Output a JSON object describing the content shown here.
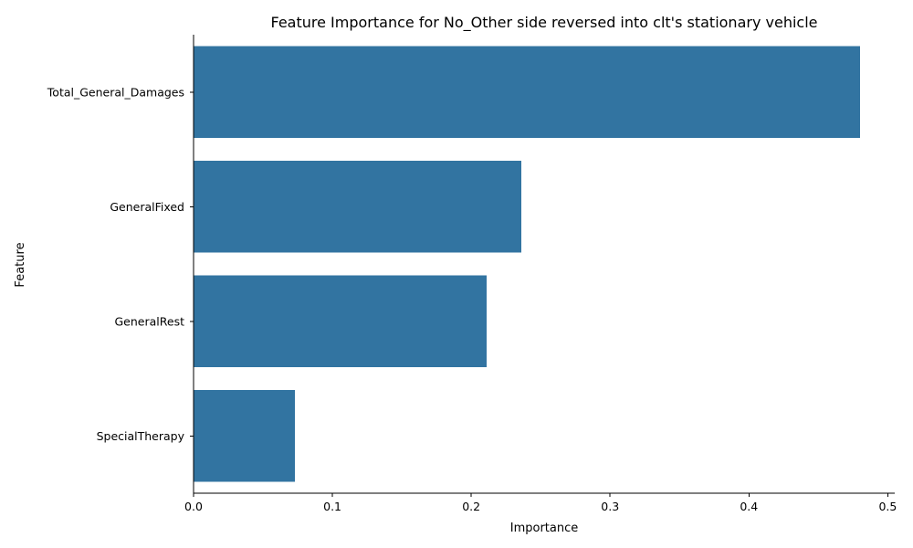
{
  "chart_data": {
    "type": "bar",
    "orientation": "horizontal",
    "title": "Feature Importance for No_Other side reversed into clt's stationary vehicle",
    "xlabel": "Importance",
    "ylabel": "Feature",
    "categories": [
      "Total_General_Damages",
      "GeneralFixed",
      "GeneralRest",
      "SpecialTherapy"
    ],
    "values": [
      0.48,
      0.236,
      0.211,
      0.073
    ],
    "xlim": [
      0,
      0.505
    ],
    "xticks": [
      0.0,
      0.1,
      0.2,
      0.3,
      0.4,
      0.5
    ],
    "xtick_labels": [
      "0.0",
      "0.1",
      "0.2",
      "0.3",
      "0.4",
      "0.5"
    ],
    "grid": false,
    "bar_color": "#3274a1"
  }
}
